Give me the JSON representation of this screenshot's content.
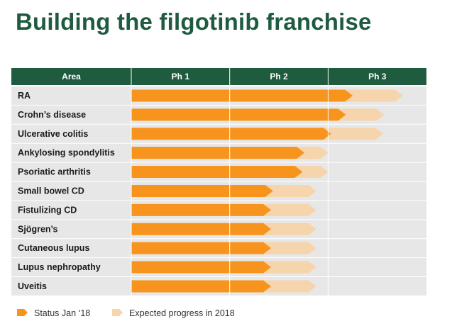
{
  "title": "Building the filgotinib franchise",
  "colors": {
    "header_bg": "#1f5b3f",
    "row_bg": "#e7e7e7",
    "status": "#f7941d",
    "expected": "#f6d4ac"
  },
  "chart_data": {
    "type": "bar",
    "subtype": "pipeline-progress",
    "columns": [
      "Area",
      "Ph 1",
      "Ph 2",
      "Ph 3"
    ],
    "phase_scale": "0 = start of Ph 1, 1 = end of Ph 1, 2 = end of Ph 2, 3 = end of Ph 3",
    "categories": [
      "RA",
      "Crohn’s disease",
      "Ulcerative colitis",
      "Ankylosing spondylitis",
      "Psoriatic arthritis",
      "Small bowel CD",
      "Fistulizing CD",
      "Sjögren’s",
      "Cutaneous lupus",
      "Lupus nephropathy",
      "Uveitis"
    ],
    "series": [
      {
        "name": "Status Jan ‘18",
        "values": [
          2.25,
          2.18,
          2.03,
          1.76,
          1.74,
          1.44,
          1.42,
          1.42,
          1.42,
          1.42,
          1.42
        ]
      },
      {
        "name": "Expected progress in 2018",
        "values": [
          2.76,
          2.57,
          2.56,
          2.0,
          2.0,
          1.88,
          1.88,
          1.88,
          1.88,
          1.88,
          1.88
        ]
      }
    ],
    "legend": [
      "Status Jan ‘18",
      "Expected progress in 2018"
    ],
    "legend_position": "bottom-left"
  }
}
